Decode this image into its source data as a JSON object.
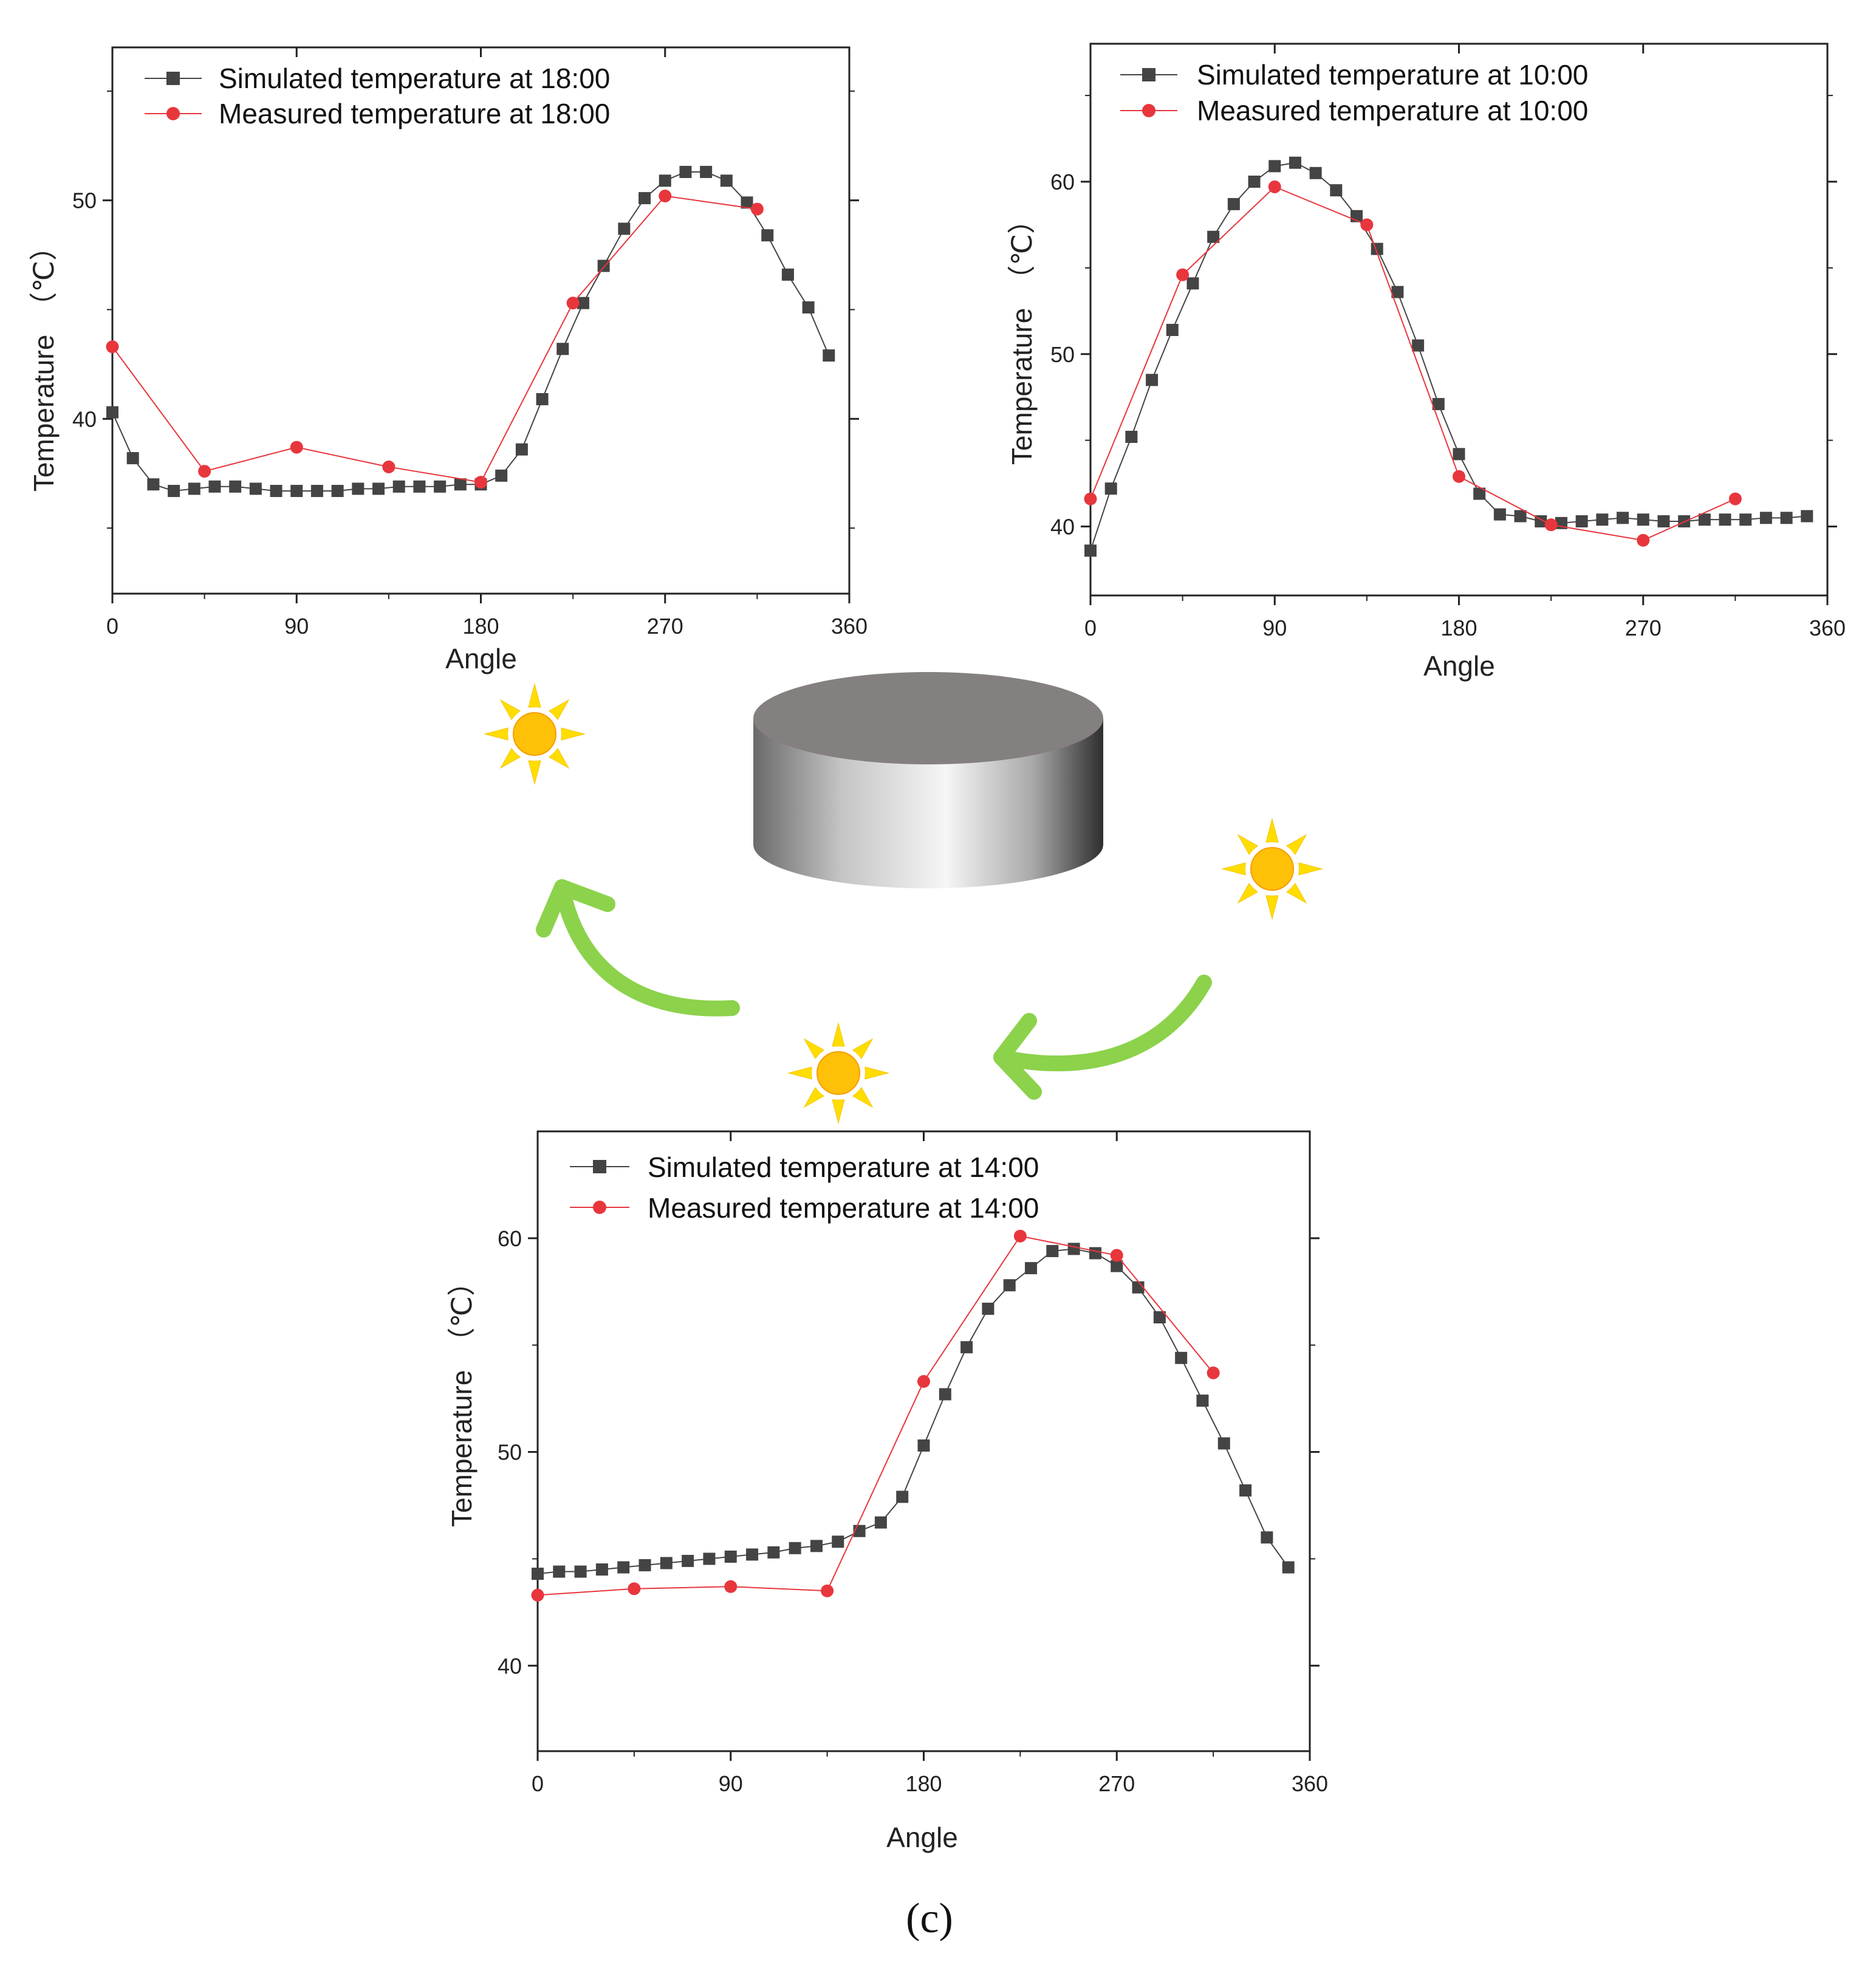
{
  "caption": "(c)",
  "colors": {
    "simulated": "#444444",
    "measured": "#e8363d",
    "arrow": "#8cd24b",
    "sun_core": "#ffc107",
    "sun_ray": "#ffdd00"
  },
  "icons": [
    "sun-icon",
    "cylinder-icon",
    "curved-arrow-icon"
  ],
  "chart_data": [
    {
      "id": "chart-18",
      "type": "line",
      "title": "",
      "xlabel": "Angle",
      "ylabel": "Temperature",
      "yunit": "（℃）",
      "xlim": [
        0,
        360
      ],
      "ylim": [
        32,
        57
      ],
      "xticks": [
        0,
        90,
        180,
        270,
        360
      ],
      "yticks": [
        40,
        50
      ],
      "series": [
        {
          "name": "Simulated temperature at 18:00",
          "marker": "square",
          "x": [
            0,
            10,
            20,
            30,
            40,
            50,
            60,
            70,
            80,
            90,
            100,
            110,
            120,
            130,
            140,
            150,
            160,
            170,
            180,
            190,
            200,
            210,
            220,
            230,
            240,
            250,
            260,
            270,
            280,
            290,
            300,
            310,
            320,
            330,
            340,
            350
          ],
          "y": [
            40.3,
            38.2,
            37.0,
            36.7,
            36.8,
            36.9,
            36.9,
            36.8,
            36.7,
            36.7,
            36.7,
            36.7,
            36.8,
            36.8,
            36.9,
            36.9,
            36.9,
            37.0,
            37.0,
            37.4,
            38.6,
            40.9,
            43.2,
            45.3,
            47.0,
            48.7,
            50.1,
            50.9,
            51.3,
            51.3,
            50.9,
            49.9,
            48.4,
            46.6,
            45.1,
            42.9
          ]
        },
        {
          "name": "Measured temperature at 18:00",
          "marker": "circle",
          "x": [
            0,
            45,
            90,
            135,
            180,
            225,
            270,
            315
          ],
          "y": [
            43.3,
            37.6,
            38.7,
            37.8,
            37.1,
            45.3,
            50.2,
            49.6
          ]
        }
      ]
    },
    {
      "id": "chart-10",
      "type": "line",
      "title": "",
      "xlabel": "Angle",
      "ylabel": "Temperature",
      "yunit": "（℃）",
      "xlim": [
        0,
        360
      ],
      "ylim": [
        36.0,
        68.0
      ],
      "xticks": [
        0,
        90,
        180,
        270,
        360
      ],
      "yticks": [
        40,
        50,
        60
      ],
      "series": [
        {
          "name": "Simulated temperature at 10:00",
          "marker": "square",
          "x": [
            0,
            10,
            20,
            30,
            40,
            50,
            60,
            70,
            80,
            90,
            100,
            110,
            120,
            130,
            140,
            150,
            160,
            170,
            180,
            190,
            200,
            210,
            220,
            230,
            240,
            250,
            260,
            270,
            280,
            290,
            300,
            310,
            320,
            330,
            340,
            350
          ],
          "y": [
            38.6,
            42.2,
            45.2,
            48.5,
            51.4,
            54.1,
            56.8,
            58.7,
            60.0,
            60.9,
            61.1,
            60.5,
            59.5,
            58.0,
            56.1,
            53.6,
            50.5,
            47.1,
            44.2,
            41.9,
            40.7,
            40.6,
            40.3,
            40.2,
            40.3,
            40.4,
            40.5,
            40.4,
            40.3,
            40.3,
            40.4,
            40.4,
            40.4,
            40.5,
            40.5,
            40.6
          ]
        },
        {
          "name": "Measured temperature at 10:00",
          "marker": "circle",
          "x": [
            0,
            45,
            90,
            135,
            180,
            225,
            270,
            315
          ],
          "y": [
            41.6,
            54.6,
            59.7,
            57.5,
            42.9,
            40.1,
            39.2,
            41.6
          ]
        }
      ]
    },
    {
      "id": "chart-14",
      "type": "line",
      "title": "",
      "xlabel": "Angle",
      "ylabel": "Temperature",
      "yunit": "（℃）",
      "xlim": [
        0,
        360
      ],
      "ylim": [
        36,
        65
      ],
      "xticks": [
        0,
        90,
        180,
        270,
        360
      ],
      "yticks": [
        40,
        50,
        60
      ],
      "series": [
        {
          "name": "Simulated temperature at 14:00",
          "marker": "square",
          "x": [
            0,
            10,
            20,
            30,
            40,
            50,
            60,
            70,
            80,
            90,
            100,
            110,
            120,
            130,
            140,
            150,
            160,
            170,
            180,
            190,
            200,
            210,
            220,
            230,
            240,
            250,
            260,
            270,
            280,
            290,
            300,
            310,
            320,
            330,
            340,
            350
          ],
          "y": [
            44.3,
            44.4,
            44.4,
            44.5,
            44.6,
            44.7,
            44.8,
            44.9,
            45.0,
            45.1,
            45.2,
            45.3,
            45.5,
            45.6,
            45.8,
            46.3,
            46.7,
            47.9,
            50.3,
            52.7,
            54.9,
            56.7,
            57.8,
            58.6,
            59.4,
            59.5,
            59.3,
            58.7,
            57.7,
            56.3,
            54.4,
            52.4,
            50.4,
            48.2,
            46.0,
            44.6
          ]
        },
        {
          "name": "Measured temperature at 14:00",
          "marker": "circle",
          "x": [
            0,
            45,
            90,
            135,
            180,
            225,
            270,
            315
          ],
          "y": [
            43.3,
            43.6,
            43.7,
            43.5,
            53.3,
            60.1,
            59.2,
            53.7
          ]
        }
      ]
    }
  ]
}
